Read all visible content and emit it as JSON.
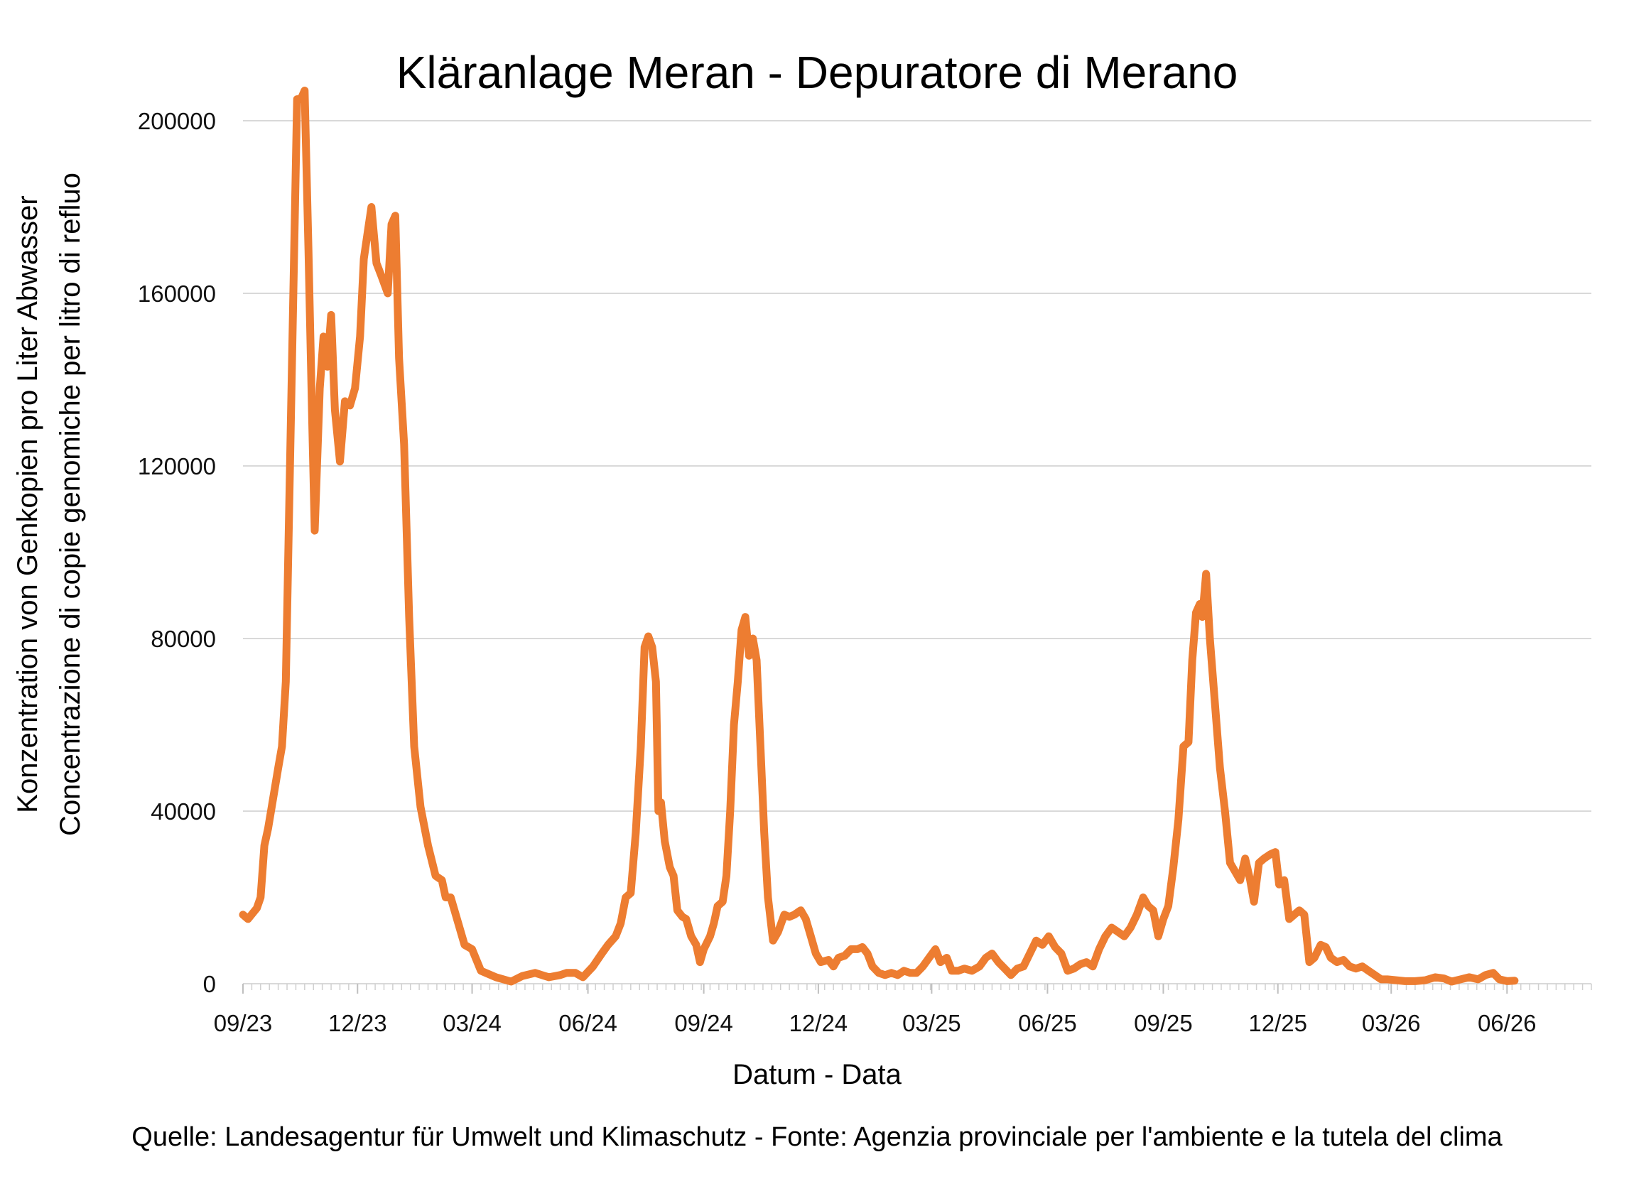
{
  "chart_data": {
    "type": "line",
    "title": "Kläranlage Meran - Depuratore di Merano",
    "xlabel": "Datum - Data",
    "ylabel": [
      "Konzentration von Genkopien pro Liter Abwasser",
      "Concentrazione di copie genomiche per litro di refluo"
    ],
    "source": "Quelle: Landesagentur für Umwelt und Klimaschutz - Fonte: Agenzia provinciale per l'ambiente e la tutela del clima",
    "ylim": [
      0,
      200000
    ],
    "y_ticks": [
      "0",
      "40000",
      "80000",
      "120000",
      "160000",
      "200000"
    ],
    "x_axis_type": "date",
    "xlim": [
      "2023-09-01",
      "2026-08-07"
    ],
    "x_ticks": [
      {
        "date": "2023-09-01",
        "label": "09/23"
      },
      {
        "date": "2023-12-01",
        "label": "12/23"
      },
      {
        "date": "2024-03-01",
        "label": "03/24"
      },
      {
        "date": "2024-06-01",
        "label": "06/24"
      },
      {
        "date": "2024-09-01",
        "label": "09/24"
      },
      {
        "date": "2024-12-01",
        "label": "12/24"
      },
      {
        "date": "2025-03-01",
        "label": "03/25"
      },
      {
        "date": "2025-06-01",
        "label": "06/25"
      },
      {
        "date": "2025-09-01",
        "label": "09/25"
      },
      {
        "date": "2025-12-01",
        "label": "12/25"
      },
      {
        "date": "2026-03-01",
        "label": "03/26"
      },
      {
        "date": "2026-06-01",
        "label": "06/26"
      }
    ],
    "grid": "horizontal",
    "legend": "none",
    "series": [
      {
        "color": "#ED7D31",
        "points": [
          [
            "2023-09-01",
            16000
          ],
          [
            "2023-09-05",
            15000
          ],
          [
            "2023-09-12",
            17500
          ],
          [
            "2023-09-15",
            20000
          ],
          [
            "2023-09-18",
            32000
          ],
          [
            "2023-09-21",
            36000
          ],
          [
            "2023-09-25",
            43000
          ],
          [
            "2023-09-29",
            50000
          ],
          [
            "2023-10-02",
            55000
          ],
          [
            "2023-10-05",
            70000
          ],
          [
            "2023-10-08",
            115000
          ],
          [
            "2023-10-11",
            160000
          ],
          [
            "2023-10-14",
            205000
          ],
          [
            "2023-10-17",
            205000
          ],
          [
            "2023-10-20",
            207000
          ],
          [
            "2023-10-23",
            170000
          ],
          [
            "2023-10-26",
            130000
          ],
          [
            "2023-10-28",
            105000
          ],
          [
            "2023-11-01",
            138000
          ],
          [
            "2023-11-04",
            150000
          ],
          [
            "2023-11-07",
            143000
          ],
          [
            "2023-11-10",
            155000
          ],
          [
            "2023-11-13",
            133000
          ],
          [
            "2023-11-17",
            121000
          ],
          [
            "2023-11-21",
            135000
          ],
          [
            "2023-11-25",
            134000
          ],
          [
            "2023-11-29",
            138000
          ],
          [
            "2023-12-03",
            150000
          ],
          [
            "2023-12-06",
            168000
          ],
          [
            "2023-12-09",
            174000
          ],
          [
            "2023-12-12",
            180000
          ],
          [
            "2023-12-16",
            167000
          ],
          [
            "2023-12-20",
            164000
          ],
          [
            "2023-12-25",
            160000
          ],
          [
            "2023-12-28",
            176000
          ],
          [
            "2023-12-31",
            178000
          ],
          [
            "2024-01-03",
            145000
          ],
          [
            "2024-01-07",
            125000
          ],
          [
            "2024-01-11",
            85000
          ],
          [
            "2024-01-15",
            55000
          ],
          [
            "2024-01-20",
            41000
          ],
          [
            "2024-01-26",
            32000
          ],
          [
            "2024-02-01",
            25000
          ],
          [
            "2024-02-06",
            24000
          ],
          [
            "2024-02-09",
            20000
          ],
          [
            "2024-02-13",
            20000
          ],
          [
            "2024-02-18",
            15000
          ],
          [
            "2024-02-24",
            9000
          ],
          [
            "2024-03-01",
            8000
          ],
          [
            "2024-03-08",
            3000
          ],
          [
            "2024-03-20",
            1500
          ],
          [
            "2024-04-01",
            500
          ],
          [
            "2024-04-10",
            1800
          ],
          [
            "2024-04-20",
            2500
          ],
          [
            "2024-05-01",
            1500
          ],
          [
            "2024-05-10",
            2000
          ],
          [
            "2024-05-15",
            2500
          ],
          [
            "2024-05-22",
            2500
          ],
          [
            "2024-05-28",
            1500
          ],
          [
            "2024-06-05",
            4000
          ],
          [
            "2024-06-12",
            7000
          ],
          [
            "2024-06-17",
            9000
          ],
          [
            "2024-06-20",
            10000
          ],
          [
            "2024-06-23",
            11000
          ],
          [
            "2024-06-27",
            14000
          ],
          [
            "2024-07-01",
            20000
          ],
          [
            "2024-07-05",
            21000
          ],
          [
            "2024-07-09",
            35000
          ],
          [
            "2024-07-13",
            55000
          ],
          [
            "2024-07-16",
            78000
          ],
          [
            "2024-07-19",
            80500
          ],
          [
            "2024-07-22",
            78000
          ],
          [
            "2024-07-25",
            70000
          ],
          [
            "2024-07-27",
            40000
          ],
          [
            "2024-07-29",
            42000
          ],
          [
            "2024-08-01",
            33000
          ],
          [
            "2024-08-05",
            27000
          ],
          [
            "2024-08-08",
            25000
          ],
          [
            "2024-08-11",
            17000
          ],
          [
            "2024-08-15",
            15500
          ],
          [
            "2024-08-18",
            15000
          ],
          [
            "2024-08-22",
            11000
          ],
          [
            "2024-08-26",
            9000
          ],
          [
            "2024-08-29",
            5000
          ],
          [
            "2024-09-01",
            8000
          ],
          [
            "2024-09-06",
            11000
          ],
          [
            "2024-09-09",
            14000
          ],
          [
            "2024-09-12",
            18000
          ],
          [
            "2024-09-16",
            19000
          ],
          [
            "2024-09-19",
            25000
          ],
          [
            "2024-09-22",
            40000
          ],
          [
            "2024-09-25",
            60000
          ],
          [
            "2024-09-28",
            70000
          ],
          [
            "2024-10-01",
            82000
          ],
          [
            "2024-10-04",
            85000
          ],
          [
            "2024-10-07",
            76000
          ],
          [
            "2024-10-10",
            80000
          ],
          [
            "2024-10-13",
            75000
          ],
          [
            "2024-10-16",
            55000
          ],
          [
            "2024-10-19",
            35000
          ],
          [
            "2024-10-22",
            20000
          ],
          [
            "2024-10-26",
            10000
          ],
          [
            "2024-10-30",
            12000
          ],
          [
            "2024-11-04",
            16000
          ],
          [
            "2024-11-08",
            15500
          ],
          [
            "2024-11-12",
            16000
          ],
          [
            "2024-11-17",
            17000
          ],
          [
            "2024-11-21",
            15000
          ],
          [
            "2024-11-25",
            11000
          ],
          [
            "2024-11-29",
            7000
          ],
          [
            "2024-12-03",
            5000
          ],
          [
            "2024-12-09",
            5500
          ],
          [
            "2024-12-13",
            4000
          ],
          [
            "2024-12-17",
            6000
          ],
          [
            "2024-12-22",
            6500
          ],
          [
            "2024-12-27",
            8000
          ],
          [
            "2025-01-01",
            8000
          ],
          [
            "2025-01-05",
            8500
          ],
          [
            "2025-01-09",
            7000
          ],
          [
            "2025-01-13",
            4000
          ],
          [
            "2025-01-18",
            2500
          ],
          [
            "2025-01-23",
            2000
          ],
          [
            "2025-01-28",
            2500
          ],
          [
            "2025-02-02",
            2000
          ],
          [
            "2025-02-07",
            3000
          ],
          [
            "2025-02-12",
            2500
          ],
          [
            "2025-02-17",
            2500
          ],
          [
            "2025-02-22",
            4000
          ],
          [
            "2025-02-27",
            6000
          ],
          [
            "2025-03-04",
            8000
          ],
          [
            "2025-03-08",
            5000
          ],
          [
            "2025-03-13",
            6000
          ],
          [
            "2025-03-17",
            3000
          ],
          [
            "2025-03-22",
            3000
          ],
          [
            "2025-03-27",
            3500
          ],
          [
            "2025-04-02",
            3000
          ],
          [
            "2025-04-08",
            4000
          ],
          [
            "2025-04-13",
            6000
          ],
          [
            "2025-04-18",
            7000
          ],
          [
            "2025-04-23",
            5000
          ],
          [
            "2025-04-28",
            3500
          ],
          [
            "2025-05-03",
            2000
          ],
          [
            "2025-05-08",
            3500
          ],
          [
            "2025-05-13",
            4000
          ],
          [
            "2025-05-18",
            7000
          ],
          [
            "2025-05-23",
            10000
          ],
          [
            "2025-05-28",
            9000
          ],
          [
            "2025-06-02",
            11000
          ],
          [
            "2025-06-07",
            8500
          ],
          [
            "2025-06-12",
            7000
          ],
          [
            "2025-06-17",
            3000
          ],
          [
            "2025-06-22",
            3500
          ],
          [
            "2025-06-27",
            4500
          ],
          [
            "2025-07-02",
            5000
          ],
          [
            "2025-07-07",
            4000
          ],
          [
            "2025-07-12",
            8000
          ],
          [
            "2025-07-17",
            11000
          ],
          [
            "2025-07-22",
            13000
          ],
          [
            "2025-07-27",
            12000
          ],
          [
            "2025-08-01",
            11000
          ],
          [
            "2025-08-06",
            13000
          ],
          [
            "2025-08-11",
            16000
          ],
          [
            "2025-08-16",
            20000
          ],
          [
            "2025-08-20",
            18000
          ],
          [
            "2025-08-24",
            17000
          ],
          [
            "2025-08-28",
            11000
          ],
          [
            "2025-09-01",
            15000
          ],
          [
            "2025-09-05",
            18000
          ],
          [
            "2025-09-09",
            27000
          ],
          [
            "2025-09-13",
            38000
          ],
          [
            "2025-09-17",
            55000
          ],
          [
            "2025-09-21",
            56000
          ],
          [
            "2025-09-24",
            75000
          ],
          [
            "2025-09-27",
            86000
          ],
          [
            "2025-09-30",
            88000
          ],
          [
            "2025-10-02",
            85000
          ],
          [
            "2025-10-05",
            95000
          ],
          [
            "2025-10-08",
            80000
          ],
          [
            "2025-10-12",
            65000
          ],
          [
            "2025-10-16",
            50000
          ],
          [
            "2025-10-20",
            40000
          ],
          [
            "2025-10-24",
            28000
          ],
          [
            "2025-10-28",
            26000
          ],
          [
            "2025-11-01",
            24000
          ],
          [
            "2025-11-05",
            29000
          ],
          [
            "2025-11-09",
            24000
          ],
          [
            "2025-11-12",
            19000
          ],
          [
            "2025-11-16",
            28000
          ],
          [
            "2025-11-20",
            29000
          ],
          [
            "2025-11-25",
            30000
          ],
          [
            "2025-11-29",
            30500
          ],
          [
            "2025-12-02",
            23000
          ],
          [
            "2025-12-06",
            24000
          ],
          [
            "2025-12-10",
            15000
          ],
          [
            "2025-12-14",
            16000
          ],
          [
            "2025-12-18",
            17000
          ],
          [
            "2025-12-22",
            16000
          ],
          [
            "2025-12-26",
            5000
          ],
          [
            "2025-12-30",
            6000
          ],
          [
            "2026-01-04",
            9000
          ],
          [
            "2026-01-08",
            8500
          ],
          [
            "2026-01-12",
            6000
          ],
          [
            "2026-01-17",
            5000
          ],
          [
            "2026-01-22",
            5500
          ],
          [
            "2026-01-27",
            4000
          ],
          [
            "2026-02-01",
            3500
          ],
          [
            "2026-02-06",
            4000
          ],
          [
            "2026-02-11",
            3000
          ],
          [
            "2026-02-16",
            2000
          ],
          [
            "2026-02-21",
            1000
          ],
          [
            "2026-02-26",
            1000
          ],
          [
            "2026-03-05",
            800
          ],
          [
            "2026-03-12",
            600
          ],
          [
            "2026-03-20",
            600
          ],
          [
            "2026-03-28",
            800
          ],
          [
            "2026-04-05",
            1500
          ],
          [
            "2026-04-12",
            1200
          ],
          [
            "2026-04-18",
            500
          ],
          [
            "2026-04-25",
            1000
          ],
          [
            "2026-05-02",
            1500
          ],
          [
            "2026-05-09",
            1000
          ],
          [
            "2026-05-15",
            2000
          ],
          [
            "2026-05-21",
            2500
          ],
          [
            "2026-05-26",
            1000
          ],
          [
            "2026-06-01",
            600
          ],
          [
            "2026-06-07",
            700
          ]
        ]
      }
    ]
  }
}
